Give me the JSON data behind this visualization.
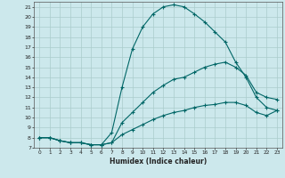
{
  "xlabel": "Humidex (Indice chaleur)",
  "bg_color": "#cce8ec",
  "grid_color": "#aacccc",
  "line_color": "#006666",
  "xlim": [
    -0.5,
    23.5
  ],
  "ylim": [
    7,
    21.5
  ],
  "xticks": [
    0,
    1,
    2,
    3,
    4,
    5,
    6,
    7,
    8,
    9,
    10,
    11,
    12,
    13,
    14,
    15,
    16,
    17,
    18,
    19,
    20,
    21,
    22,
    23
  ],
  "yticks": [
    7,
    8,
    9,
    10,
    11,
    12,
    13,
    14,
    15,
    16,
    17,
    18,
    19,
    20,
    21
  ],
  "line1_x": [
    0,
    1,
    2,
    3,
    4,
    5,
    6,
    7,
    8,
    9,
    10,
    11,
    12,
    13,
    14,
    15,
    16,
    17,
    18,
    19,
    20,
    21,
    22,
    23
  ],
  "line1_y": [
    8.0,
    8.0,
    7.7,
    7.5,
    7.5,
    7.3,
    7.3,
    7.5,
    8.3,
    8.8,
    9.3,
    9.8,
    10.2,
    10.5,
    10.7,
    11.0,
    11.2,
    11.3,
    11.5,
    11.5,
    11.2,
    10.5,
    10.2,
    10.7
  ],
  "line2_x": [
    0,
    1,
    2,
    3,
    4,
    5,
    6,
    7,
    8,
    9,
    10,
    11,
    12,
    13,
    14,
    15,
    16,
    17,
    18,
    19,
    20,
    21,
    22,
    23
  ],
  "line2_y": [
    8.0,
    8.0,
    7.7,
    7.5,
    7.5,
    7.3,
    7.3,
    7.5,
    9.5,
    10.5,
    11.5,
    12.5,
    13.2,
    13.8,
    14.0,
    14.5,
    15.0,
    15.3,
    15.5,
    15.0,
    14.2,
    12.5,
    12.0,
    11.8
  ],
  "line3_x": [
    0,
    1,
    2,
    3,
    4,
    5,
    6,
    7,
    8,
    9,
    10,
    11,
    12,
    13,
    14,
    15,
    16,
    17,
    18,
    19,
    20,
    21,
    22,
    23
  ],
  "line3_y": [
    8.0,
    8.0,
    7.7,
    7.5,
    7.5,
    7.3,
    7.3,
    8.5,
    13.0,
    16.8,
    19.0,
    20.3,
    21.0,
    21.2,
    21.0,
    20.3,
    19.5,
    18.5,
    17.5,
    15.5,
    14.0,
    12.0,
    11.0,
    10.7
  ]
}
